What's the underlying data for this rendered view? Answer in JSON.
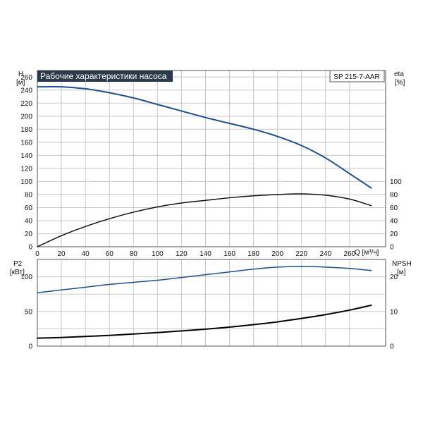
{
  "chart_data": [
    {
      "type": "line",
      "title": "Рабочие характеристики насоса",
      "model_label": "SP 215-7-AAR",
      "xlabel": "Q [м³/ч]",
      "xlim": [
        0,
        290
      ],
      "xticks": [
        0,
        20,
        40,
        60,
        80,
        100,
        120,
        140,
        160,
        180,
        200,
        220,
        240,
        260
      ],
      "ylabel_left": "H",
      "ylabel_left_unit": "[м]",
      "ylim_left": [
        0,
        270
      ],
      "yticks_left": [
        0,
        20,
        40,
        60,
        80,
        100,
        120,
        140,
        160,
        180,
        200,
        220,
        240,
        260
      ],
      "ylabel_right": "eta",
      "ylabel_right_unit": "[%]",
      "ylim_right": [
        0,
        270
      ],
      "yticks_right": [
        0,
        20,
        40,
        60,
        80,
        100
      ],
      "grid": true,
      "series": [
        {
          "axis": "left",
          "color": "#1f4e8c",
          "width": 2,
          "x": [
            0,
            20,
            40,
            60,
            80,
            100,
            120,
            140,
            160,
            180,
            200,
            220,
            240,
            260,
            278
          ],
          "values": [
            245,
            245,
            242,
            236,
            228,
            218,
            208,
            198,
            189,
            180,
            169,
            155,
            136,
            112,
            90
          ]
        },
        {
          "axis": "right",
          "color": "#111111",
          "width": 1.5,
          "x": [
            0,
            20,
            40,
            60,
            80,
            100,
            120,
            140,
            160,
            180,
            200,
            220,
            240,
            260,
            278
          ],
          "values": [
            0,
            17,
            31,
            43,
            53,
            61,
            67,
            71,
            75,
            78,
            80,
            81,
            79,
            73,
            63
          ]
        }
      ]
    },
    {
      "type": "line",
      "xlim": [
        0,
        290
      ],
      "xticks": [
        0,
        20,
        40,
        60,
        80,
        100,
        120,
        140,
        160,
        180,
        200,
        220,
        240,
        260
      ],
      "ylabel_left": "P2",
      "ylabel_left_unit": "[кВт]",
      "ylim_left": [
        0,
        125
      ],
      "yticks_left": [
        0,
        50,
        100
      ],
      "ylabel_right": "NPSH",
      "ylabel_right_unit": "[м]",
      "ylim_right": [
        0,
        25
      ],
      "yticks_right": [
        0,
        10,
        20
      ],
      "grid": true,
      "series": [
        {
          "axis": "left",
          "color": "#1f4e8c",
          "width": 1.5,
          "x": [
            0,
            20,
            40,
            60,
            80,
            100,
            120,
            140,
            160,
            180,
            200,
            220,
            240,
            260,
            278
          ],
          "values": [
            77,
            81,
            85,
            89,
            92,
            95,
            99,
            103,
            107,
            111,
            114,
            115,
            114,
            112,
            109
          ]
        },
        {
          "axis": "right",
          "color": "#000000",
          "width": 2,
          "x": [
            0,
            20,
            40,
            60,
            80,
            100,
            120,
            140,
            160,
            180,
            200,
            220,
            240,
            260,
            278
          ],
          "values": [
            2.3,
            2.5,
            2.8,
            3.1,
            3.5,
            3.9,
            4.4,
            4.9,
            5.5,
            6.2,
            7.0,
            8.0,
            9.1,
            10.4,
            11.8
          ]
        }
      ]
    }
  ]
}
